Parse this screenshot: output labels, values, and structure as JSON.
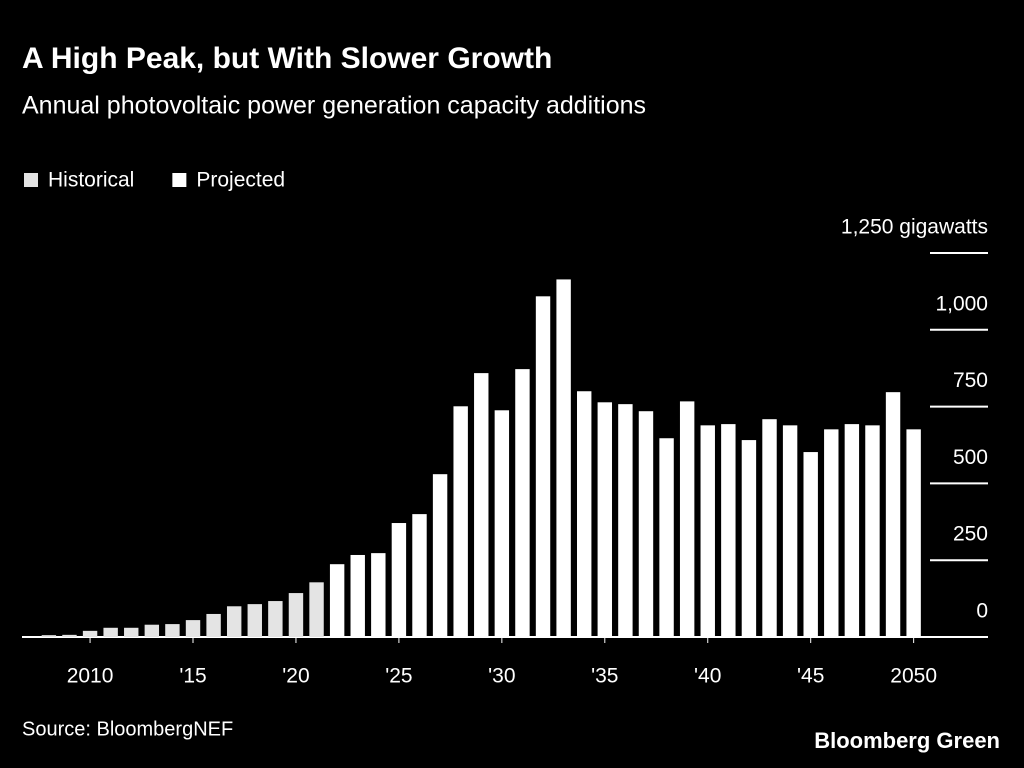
{
  "chart_data": {
    "type": "bar",
    "title": "A High Peak, but With Slower Growth",
    "subtitle": "Annual photovoltaic power generation capacity additions",
    "source": "Source: BloombergNEF",
    "brand": "Bloomberg Green",
    "x": [
      2008,
      2009,
      2010,
      2011,
      2012,
      2013,
      2014,
      2015,
      2016,
      2017,
      2018,
      2019,
      2020,
      2021,
      2022,
      2023,
      2024,
      2025,
      2026,
      2027,
      2028,
      2029,
      2030,
      2031,
      2032,
      2033,
      2034,
      2035,
      2036,
      2037,
      2038,
      2039,
      2040,
      2041,
      2042,
      2043,
      2044,
      2045,
      2046,
      2047,
      2048,
      2049,
      2050
    ],
    "series": [
      {
        "name": "Historical",
        "color": "#e4e4e4",
        "values": [
          6,
          7,
          20,
          30,
          30,
          40,
          42,
          55,
          75,
          100,
          107,
          117,
          143,
          178,
          null,
          null,
          null,
          null,
          null,
          null,
          null,
          null,
          null,
          null,
          null,
          null,
          null,
          null,
          null,
          null,
          null,
          null,
          null,
          null,
          null,
          null,
          null,
          null,
          null,
          null,
          null,
          null,
          null
        ]
      },
      {
        "name": "Projected",
        "color": "#ffffff",
        "values": [
          null,
          null,
          null,
          null,
          null,
          null,
          null,
          null,
          null,
          null,
          null,
          null,
          null,
          null,
          237,
          267,
          273,
          371,
          400,
          530,
          751,
          859,
          738,
          872,
          1109,
          1164,
          800,
          764,
          758,
          735,
          647,
          767,
          689,
          693,
          641,
          709,
          689,
          602,
          676,
          693,
          689,
          797,
          676
        ]
      }
    ],
    "xlim": [
      2006.5,
      2054
    ],
    "xticks": [
      {
        "value": 2010,
        "label": "2010"
      },
      {
        "value": 2015,
        "label": "'15"
      },
      {
        "value": 2020,
        "label": "'20"
      },
      {
        "value": 2025,
        "label": "'25"
      },
      {
        "value": 2030,
        "label": "'30"
      },
      {
        "value": 2035,
        "label": "'35"
      },
      {
        "value": 2040,
        "label": "'40"
      },
      {
        "value": 2045,
        "label": "'45"
      },
      {
        "value": 2050,
        "label": "2050"
      }
    ],
    "ylim": [
      0,
      1250
    ],
    "yticks": [
      0,
      250,
      500,
      750,
      {
        "value": 1000,
        "label": "1,000"
      },
      {
        "value": 1250,
        "label": "1,250 gigawatts"
      }
    ]
  }
}
